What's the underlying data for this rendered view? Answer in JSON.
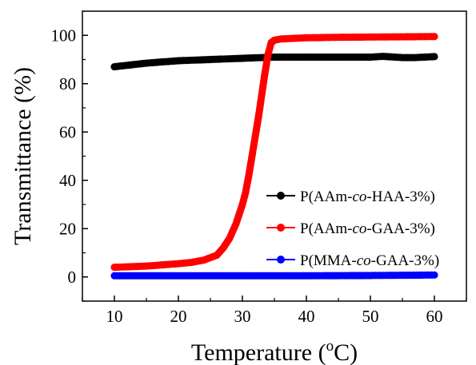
{
  "chart_data": {
    "type": "scatter",
    "xlabel": "Temperature (°C)",
    "ylabel": "Transmittance (%)",
    "xlim": [
      5,
      65
    ],
    "ylim": [
      -10,
      110
    ],
    "xticks": [
      10,
      20,
      30,
      40,
      50,
      60
    ],
    "yticks": [
      0,
      20,
      40,
      60,
      80,
      100
    ],
    "grid": false,
    "legend_position": "lower-right",
    "series": [
      {
        "name": "P(AAm-co-HAA-3%)",
        "name_parts": [
          "P(AAm-",
          "co",
          "-HAA-3%)"
        ],
        "color": "#000000",
        "x": [
          10,
          15,
          20,
          25,
          30,
          35,
          40,
          45,
          50,
          52,
          55,
          57,
          60
        ],
        "y": [
          87,
          88.5,
          89.5,
          90,
          90.5,
          91,
          91,
          91,
          91,
          91.3,
          90.8,
          90.8,
          91.2
        ]
      },
      {
        "name": "P(AAm-co-GAA-3%)",
        "name_parts": [
          "P(AAm-",
          "co",
          "-GAA-3%)"
        ],
        "color": "#ff0000",
        "x": [
          10,
          15,
          20,
          22,
          24,
          26,
          27,
          28,
          29,
          30,
          30.5,
          31,
          31.5,
          32,
          32.5,
          33,
          33.5,
          34,
          34.5,
          35,
          36,
          40,
          45,
          50,
          55,
          60
        ],
        "y": [
          4,
          4.5,
          5.5,
          6,
          7,
          9,
          12,
          16,
          22,
          30,
          35,
          42,
          50,
          58,
          66,
          75,
          84,
          92,
          97,
          98,
          98.5,
          99,
          99.2,
          99.3,
          99.4,
          99.5
        ]
      },
      {
        "name": "P(MMA-co-GAA-3%)",
        "name_parts": [
          "P(MMA-",
          "co",
          "-GAA-3%)"
        ],
        "color": "#0000ff",
        "x": [
          10,
          20,
          30,
          40,
          50,
          60
        ],
        "y": [
          0.5,
          0.5,
          0.5,
          0.5,
          0.6,
          0.8
        ]
      }
    ]
  }
}
